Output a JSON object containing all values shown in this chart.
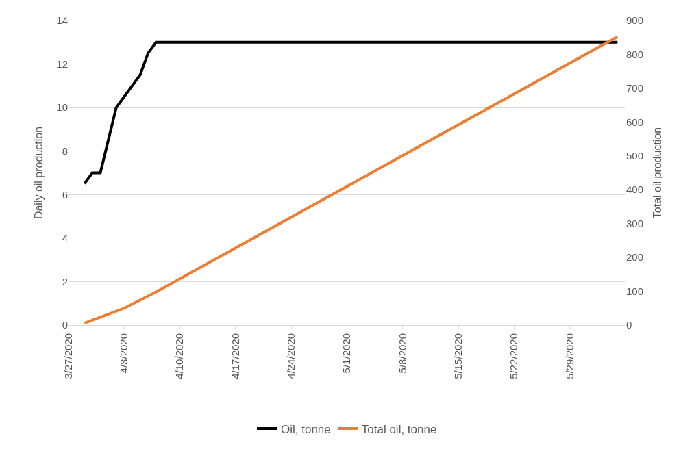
{
  "chart_data": {
    "type": "line",
    "xlabel": null,
    "ylabel": "Daily oil production",
    "y2label": "Total oil production",
    "xlim": [
      "2020-03-27",
      "2020-06-05"
    ],
    "xticks": [
      {
        "value": "2020-03-27",
        "label": "3/27/2020"
      },
      {
        "value": "2020-04-03",
        "label": "4/3/2020"
      },
      {
        "value": "2020-04-10",
        "label": "4/10/2020"
      },
      {
        "value": "2020-04-17",
        "label": "4/17/2020"
      },
      {
        "value": "2020-04-24",
        "label": "4/24/2020"
      },
      {
        "value": "2020-05-01",
        "label": "5/1/2020"
      },
      {
        "value": "2020-05-08",
        "label": "5/8/2020"
      },
      {
        "value": "2020-05-15",
        "label": "5/15/2020"
      },
      {
        "value": "2020-05-22",
        "label": "5/22/2020"
      },
      {
        "value": "2020-05-29",
        "label": "5/29/2020"
      }
    ],
    "ylim": [
      0,
      14
    ],
    "yticks": [
      0,
      2,
      4,
      6,
      8,
      10,
      12,
      14
    ],
    "y2lim": [
      0,
      900
    ],
    "y2ticks": [
      0,
      100,
      200,
      300,
      400,
      500,
      600,
      700,
      800,
      900
    ],
    "grid": "y",
    "legend": "bottom",
    "marker": "none",
    "line_style": "solid",
    "series": [
      {
        "name": "Oil, tonne",
        "color": "#000000",
        "x": [
          "2020-03-29",
          "2020-03-30",
          "2020-03-31",
          "2020-04-01",
          "2020-04-02",
          "2020-04-03",
          "2020-04-04",
          "2020-04-05",
          "2020-04-06",
          "2020-04-07",
          "2020-06-04"
        ],
        "values": [
          6.5,
          7,
          7,
          8.5,
          10,
          10.5,
          11,
          11.5,
          12.5,
          13,
          13
        ]
      },
      {
        "name": "Total oil, tonne",
        "color": "#ed7d31",
        "axis": "y2",
        "x": [
          "2020-03-29",
          "2020-04-03",
          "2020-04-07",
          "2020-04-14",
          "2020-04-21",
          "2020-04-28",
          "2020-05-05",
          "2020-05-12",
          "2020-05-19",
          "2020-05-26",
          "2020-06-02",
          "2020-06-04"
        ],
        "values": [
          6,
          50,
          98,
          189,
          280,
          371,
          462,
          553,
          644,
          735,
          826,
          852
        ]
      }
    ]
  }
}
